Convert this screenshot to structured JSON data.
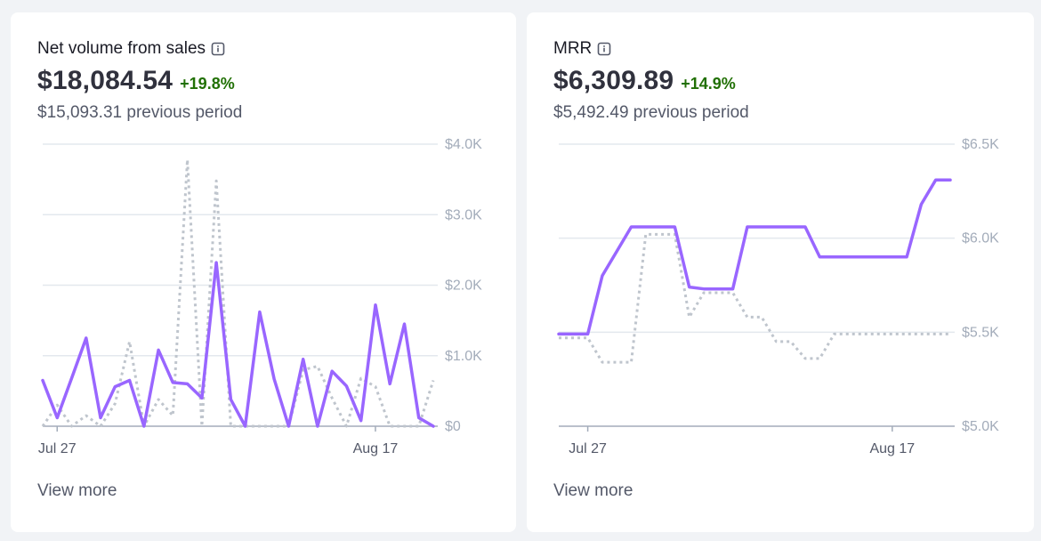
{
  "cards": [
    {
      "title": "Net volume from sales",
      "info_icon": "info-icon",
      "value": "$18,084.54",
      "change": "+19.8%",
      "previous": "$15,093.31 previous period",
      "view_more": "View more"
    },
    {
      "title": "MRR",
      "info_icon": "info-icon",
      "value": "$6,309.89",
      "change": "+14.9%",
      "previous": "$5,492.49 previous period",
      "view_more": "View more"
    }
  ],
  "colors": {
    "current": "#9966ff",
    "previous": "#bfc5cd",
    "gridline": "#e3e8ee",
    "positive": "#217005"
  },
  "chart_data": [
    {
      "type": "line",
      "y_tick_labels": [
        "$4.0K",
        "$3.0K",
        "$2.0K",
        "$1.0K",
        "$0"
      ],
      "y_ticks": [
        4000,
        3000,
        2000,
        1000,
        0
      ],
      "ylim": [
        0,
        4000
      ],
      "x_tick_labels": [
        "Jul 27",
        "Aug 17"
      ],
      "x_tick_indices": [
        1,
        23
      ],
      "grid": true,
      "series": [
        {
          "role": "current",
          "style": "solid",
          "values": [
            650,
            120,
            680,
            1250,
            120,
            560,
            650,
            0,
            1080,
            620,
            600,
            400,
            2320,
            380,
            0,
            1620,
            670,
            0,
            950,
            0,
            780,
            570,
            80,
            1720,
            600,
            1450,
            120,
            0
          ]
        },
        {
          "role": "previous",
          "style": "dotted",
          "values": [
            0,
            300,
            0,
            150,
            0,
            320,
            1200,
            0,
            380,
            150,
            3780,
            0,
            3480,
            0,
            0,
            0,
            0,
            0,
            800,
            850,
            400,
            0,
            680,
            560,
            0,
            0,
            0,
            650
          ]
        }
      ]
    },
    {
      "type": "line",
      "y_tick_labels": [
        "$6.5K",
        "$6.0K",
        "$5.5K",
        "$5.0K"
      ],
      "y_ticks": [
        6500,
        6000,
        5500,
        5000
      ],
      "ylim": [
        5000,
        6500
      ],
      "x_tick_labels": [
        "Jul 27",
        "Aug 17"
      ],
      "x_tick_indices": [
        2,
        23
      ],
      "grid": true,
      "series": [
        {
          "role": "current",
          "style": "solid",
          "values": [
            5490,
            5490,
            5490,
            5800,
            5930,
            6060,
            6060,
            6060,
            6060,
            5740,
            5730,
            5730,
            5730,
            6060,
            6060,
            6060,
            6060,
            6060,
            5900,
            5900,
            5900,
            5900,
            5900,
            5900,
            5900,
            6180,
            6310,
            6310
          ]
        },
        {
          "role": "previous",
          "style": "dotted",
          "values": [
            5470,
            5470,
            5470,
            5340,
            5340,
            5340,
            6020,
            6020,
            6020,
            5580,
            5710,
            5710,
            5710,
            5580,
            5580,
            5450,
            5450,
            5360,
            5360,
            5490,
            5490,
            5490,
            5490,
            5490,
            5490,
            5490,
            5490,
            5490
          ]
        }
      ]
    }
  ]
}
